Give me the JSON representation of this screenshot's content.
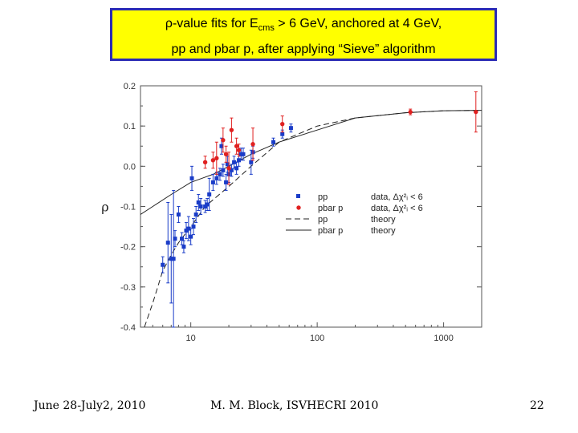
{
  "slide": {
    "title_prefix": "ρ-value fits for E",
    "title_sub": "cms",
    "title_suffix": " > 6 GeV, anchored at 4 GeV,",
    "title_line2": "pp and pbar p, after applying “Sieve” algorithm",
    "footer_left": "June 28-July2, 2010",
    "footer_center": "M. M. Block, ISVHECRI 2010",
    "footer_right": "22",
    "colors": {
      "title_bg": "#ffff00",
      "title_border": "#2b2bb5",
      "pp": "#1a3cc8",
      "pbar": "#e02020"
    }
  },
  "chart_data": {
    "type": "scatter",
    "xscale": "log",
    "xlim": [
      4,
      2000
    ],
    "ylim": [
      -0.4,
      0.2
    ],
    "xticks": [
      {
        "value": 10,
        "label": "10"
      },
      {
        "value": 100,
        "label": "100"
      },
      {
        "value": 1000,
        "label": "1000"
      }
    ],
    "yticks": [
      {
        "value": 0.2,
        "label": "0.2"
      },
      {
        "value": 0.1,
        "label": "0.1"
      },
      {
        "value": 0.0,
        "label": "0.0"
      },
      {
        "value": -0.1,
        "label": "-0.1"
      },
      {
        "value": -0.2,
        "label": "-0.2"
      },
      {
        "value": -0.3,
        "label": "-0.3"
      },
      {
        "value": -0.4,
        "label": "-0.4"
      }
    ],
    "ylabel": "ρ",
    "series": [
      {
        "name": "pp data",
        "marker": "square",
        "points": [
          {
            "x": 6.0,
            "y": -0.245,
            "err": 0.02
          },
          {
            "x": 6.6,
            "y": -0.19,
            "err": 0.1
          },
          {
            "x": 7.0,
            "y": -0.23,
            "err": 0.11
          },
          {
            "x": 7.3,
            "y": -0.23,
            "err": 0.17
          },
          {
            "x": 7.5,
            "y": -0.18,
            "err": 0.02
          },
          {
            "x": 8.0,
            "y": -0.12,
            "err": 0.02
          },
          {
            "x": 8.5,
            "y": -0.18,
            "err": 0.015
          },
          {
            "x": 8.8,
            "y": -0.2,
            "err": 0.015
          },
          {
            "x": 9.2,
            "y": -0.16,
            "err": 0.02
          },
          {
            "x": 9.6,
            "y": -0.155,
            "err": 0.03
          },
          {
            "x": 10.0,
            "y": -0.175,
            "err": 0.02
          },
          {
            "x": 10.2,
            "y": -0.03,
            "err": 0.03
          },
          {
            "x": 10.5,
            "y": -0.15,
            "err": 0.02
          },
          {
            "x": 11.0,
            "y": -0.12,
            "err": 0.02
          },
          {
            "x": 11.5,
            "y": -0.09,
            "err": 0.02
          },
          {
            "x": 12.0,
            "y": -0.1,
            "err": 0.02
          },
          {
            "x": 13.0,
            "y": -0.1,
            "err": 0.015
          },
          {
            "x": 13.5,
            "y": -0.095,
            "err": 0.015
          },
          {
            "x": 14.0,
            "y": -0.07,
            "err": 0.04
          },
          {
            "x": 15.0,
            "y": -0.04,
            "err": 0.02
          },
          {
            "x": 16.0,
            "y": -0.03,
            "err": 0.015
          },
          {
            "x": 17.0,
            "y": -0.02,
            "err": 0.015
          },
          {
            "x": 17.5,
            "y": 0.05,
            "err": 0.02
          },
          {
            "x": 18.0,
            "y": -0.01,
            "err": 0.015
          },
          {
            "x": 19.0,
            "y": -0.04,
            "err": 0.02
          },
          {
            "x": 19.5,
            "y": 0.005,
            "err": 0.02
          },
          {
            "x": 20.0,
            "y": -0.02,
            "err": 0.02
          },
          {
            "x": 21.0,
            "y": -0.01,
            "err": 0.015
          },
          {
            "x": 22.0,
            "y": 0.01,
            "err": 0.015
          },
          {
            "x": 23.0,
            "y": -0.005,
            "err": 0.015
          },
          {
            "x": 24.0,
            "y": 0.015,
            "err": 0.015
          },
          {
            "x": 25.0,
            "y": 0.03,
            "err": 0.015
          },
          {
            "x": 26.0,
            "y": 0.03,
            "err": 0.015
          },
          {
            "x": 30.0,
            "y": 0.01,
            "err": 0.03
          },
          {
            "x": 31.0,
            "y": 0.035,
            "err": 0.015
          },
          {
            "x": 45.0,
            "y": 0.06,
            "err": 0.01
          },
          {
            "x": 53.0,
            "y": 0.08,
            "err": 0.01
          },
          {
            "x": 62.0,
            "y": 0.095,
            "err": 0.01
          }
        ]
      },
      {
        "name": "pbar p data",
        "marker": "circle",
        "points": [
          {
            "x": 13.0,
            "y": 0.01,
            "err": 0.015
          },
          {
            "x": 15.0,
            "y": 0.015,
            "err": 0.02
          },
          {
            "x": 16.0,
            "y": 0.02,
            "err": 0.04
          },
          {
            "x": 18.0,
            "y": 0.065,
            "err": 0.03
          },
          {
            "x": 19.0,
            "y": 0.03,
            "err": 0.02
          },
          {
            "x": 20.0,
            "y": -0.005,
            "err": 0.04
          },
          {
            "x": 21.0,
            "y": 0.09,
            "err": 0.03
          },
          {
            "x": 23.0,
            "y": 0.05,
            "err": 0.02
          },
          {
            "x": 24.0,
            "y": 0.04,
            "err": 0.015
          },
          {
            "x": 31.0,
            "y": 0.055,
            "err": 0.04
          },
          {
            "x": 53.0,
            "y": 0.105,
            "err": 0.02
          },
          {
            "x": 546.0,
            "y": 0.135,
            "err": 0.007
          },
          {
            "x": 1800.0,
            "y": 0.135,
            "err": 0.05
          }
        ]
      },
      {
        "name": "pp theory",
        "style": "dashed",
        "curve": [
          {
            "x": 4.3,
            "y": -0.4
          },
          {
            "x": 5,
            "y": -0.34
          },
          {
            "x": 6,
            "y": -0.26
          },
          {
            "x": 7,
            "y": -0.22
          },
          {
            "x": 8,
            "y": -0.19
          },
          {
            "x": 10,
            "y": -0.15
          },
          {
            "x": 13,
            "y": -0.1
          },
          {
            "x": 20,
            "y": -0.05
          },
          {
            "x": 30,
            "y": 0.0
          },
          {
            "x": 50,
            "y": 0.06
          },
          {
            "x": 100,
            "y": 0.1
          },
          {
            "x": 200,
            "y": 0.12
          },
          {
            "x": 500,
            "y": 0.133
          },
          {
            "x": 1000,
            "y": 0.138
          },
          {
            "x": 2000,
            "y": 0.139
          }
        ]
      },
      {
        "name": "pbar p theory",
        "style": "solid",
        "curve": [
          {
            "x": 4,
            "y": -0.12
          },
          {
            "x": 5,
            "y": -0.1
          },
          {
            "x": 7,
            "y": -0.07
          },
          {
            "x": 10,
            "y": -0.04
          },
          {
            "x": 15,
            "y": -0.02
          },
          {
            "x": 20,
            "y": 0.0
          },
          {
            "x": 30,
            "y": 0.03
          },
          {
            "x": 50,
            "y": 0.06
          },
          {
            "x": 100,
            "y": 0.09
          },
          {
            "x": 200,
            "y": 0.12
          },
          {
            "x": 500,
            "y": 0.133
          },
          {
            "x": 1000,
            "y": 0.138
          },
          {
            "x": 2000,
            "y": 0.139
          }
        ]
      }
    ],
    "legend": {
      "position": "center-right",
      "entries": [
        {
          "marker": "square",
          "label": "pp",
          "type": "data, Δχ²ᵢ < 6"
        },
        {
          "marker": "circle",
          "label": "pbar p",
          "type": "data, Δχ²ᵢ < 6"
        },
        {
          "marker": "dashed",
          "label": "pp",
          "type": "theory"
        },
        {
          "marker": "solid",
          "label": "pbar p",
          "type": "theory"
        }
      ]
    }
  }
}
